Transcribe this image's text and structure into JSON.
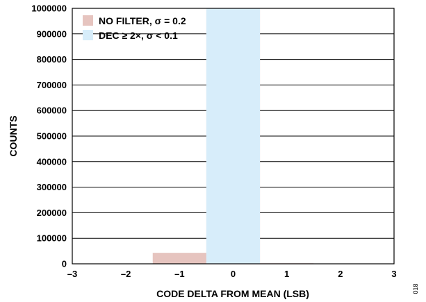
{
  "chart_data": {
    "type": "bar",
    "xlabel": "CODE DELTA FROM MEAN (LSB)",
    "ylabel": "COUNTS",
    "xlim": [
      -3,
      3
    ],
    "ylim": [
      0,
      1000000
    ],
    "x_ticks": [
      -3,
      -2,
      -1,
      0,
      1,
      2,
      3
    ],
    "x_tick_labels": [
      "–3",
      "–2",
      "–1",
      "0",
      "1",
      "2",
      "3"
    ],
    "y_ticks": [
      0,
      100000,
      200000,
      300000,
      400000,
      500000,
      600000,
      700000,
      800000,
      900000,
      1000000
    ],
    "y_tick_labels": [
      "0",
      "100000",
      "200000",
      "300000",
      "400000",
      "500000",
      "600000",
      "700000",
      "800000",
      "900000",
      "1000000"
    ],
    "grid": "horizontal",
    "legend_position": "top-left",
    "series": [
      {
        "name": "NO FILTER, σ = 0.2",
        "color": "#e6c4bf",
        "x": [
          -1,
          0,
          1
        ],
        "values": [
          43000,
          1000000,
          2000
        ]
      },
      {
        "name": "DEC ≥ 2×, σ < 0.1",
        "color": "#d7edfa",
        "x": [
          0
        ],
        "values": [
          1000000
        ]
      }
    ]
  },
  "figure_code": "018"
}
